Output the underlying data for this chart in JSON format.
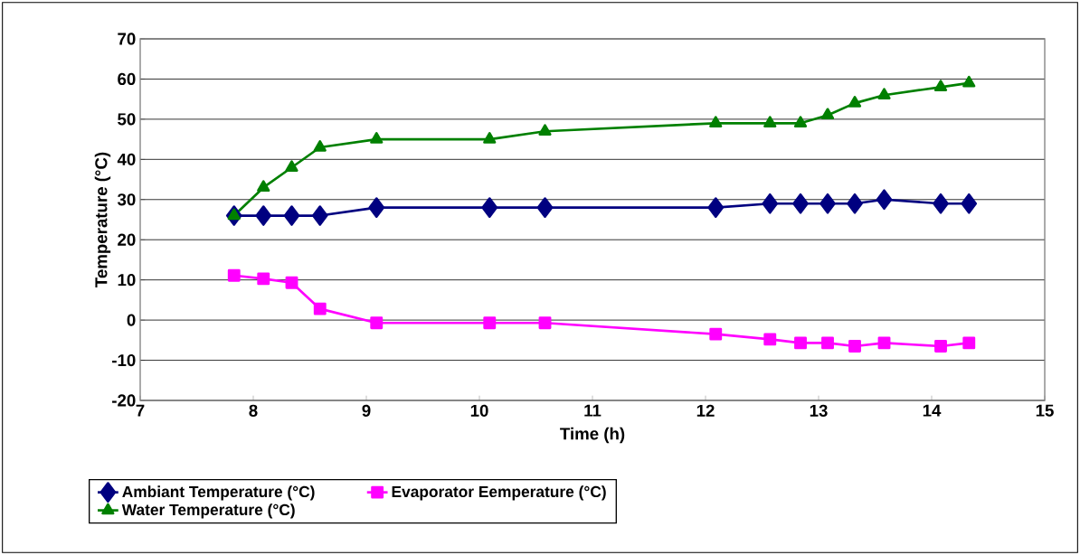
{
  "chart_data": {
    "type": "line",
    "xlabel": "Time (h)",
    "ylabel": "Temperature (°C)",
    "x": [
      7.83,
      8.09,
      8.34,
      8.59,
      9.09,
      10.09,
      10.58,
      12.09,
      12.57,
      12.84,
      13.08,
      13.32,
      13.58,
      14.08,
      14.33
    ],
    "series": [
      {
        "name": "Ambiant Temperature (°C)",
        "color": "#000080",
        "marker": "diamond",
        "values": [
          26,
          26,
          26,
          26,
          28,
          28,
          28,
          28,
          29,
          29,
          29,
          29,
          30,
          29,
          29
        ]
      },
      {
        "name": "Evaporator Eemperature (°C)",
        "color": "#ff00ff",
        "marker": "square",
        "values": [
          11.1,
          10.3,
          9.3,
          2.8,
          -0.7,
          -0.7,
          -0.7,
          -3.5,
          -4.8,
          -5.7,
          -5.7,
          -6.5,
          -5.7,
          -6.5,
          -5.7
        ]
      },
      {
        "name": "Water Temperature (°C)",
        "color": "#008000",
        "marker": "triangle",
        "values": [
          26,
          33,
          38,
          43,
          45,
          45,
          47,
          49,
          49,
          49,
          51,
          54,
          56,
          58,
          59
        ]
      }
    ],
    "xlim": [
      7,
      15
    ],
    "xticks": [
      7,
      8,
      9,
      10,
      11,
      12,
      13,
      14,
      15
    ],
    "ylim": [
      -20,
      70
    ],
    "yticks": [
      -20,
      -10,
      0,
      10,
      20,
      30,
      40,
      50,
      60,
      70
    ],
    "grid": "y",
    "legend": "bottom",
    "line_style": "solid"
  }
}
